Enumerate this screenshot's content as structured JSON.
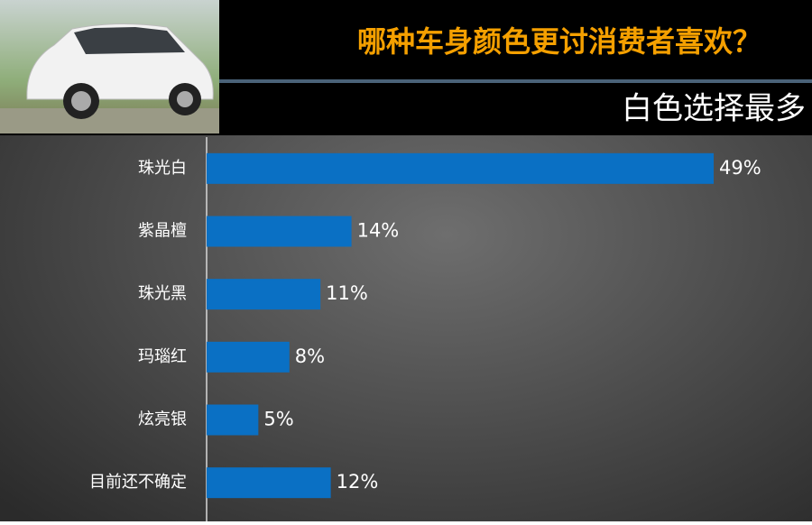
{
  "chart_data": {
    "type": "bar",
    "orientation": "horizontal",
    "title": "哪种车身颜色更讨消费者喜欢？",
    "subtitle": "白色选择最多",
    "categories": [
      "珠光白",
      "紫晶檀",
      "珠光黑",
      "玛瑙红",
      "炫亮银",
      "目前还不确定"
    ],
    "values": [
      49,
      14,
      11,
      8,
      5,
      12
    ],
    "value_labels": [
      "49%",
      "14%",
      "11%",
      "8%",
      "5%",
      "12%"
    ],
    "color": "#0a70c4"
  }
}
